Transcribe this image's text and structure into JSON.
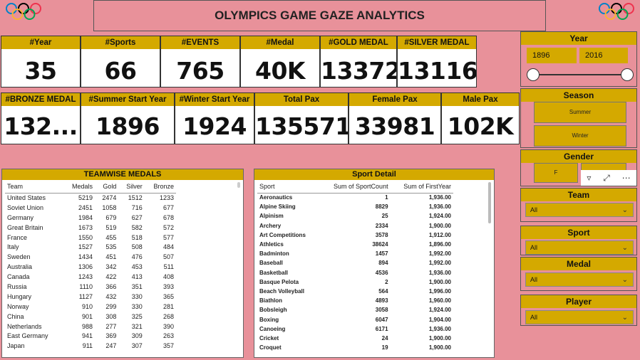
{
  "header": {
    "title": "OLYMPICS GAME GAZE ANALYTICS",
    "logo_left": "olympic-rings-icon",
    "logo_right": "olympic-rings-icon"
  },
  "kpis_row1": [
    {
      "label": "#Year",
      "value": "35"
    },
    {
      "label": "#Sports",
      "value": "66"
    },
    {
      "label": "#EVENTS",
      "value": "765"
    },
    {
      "label": "#Medal",
      "value": "40K"
    },
    {
      "label": "#GOLD MEDAL",
      "value": "13372"
    },
    {
      "label": "#SILVER MEDAL",
      "value": "13116"
    }
  ],
  "kpis_row2": [
    {
      "label": "#BRONZE MEDAL",
      "value": "132..."
    },
    {
      "label": "#Summer Start Year",
      "value": "1896"
    },
    {
      "label": "#Winter Start Year",
      "value": "1924"
    },
    {
      "label": "Total Pax",
      "value": "135571"
    },
    {
      "label": "Female Pax",
      "value": "33981"
    },
    {
      "label": "Male Pax",
      "value": "102K"
    }
  ],
  "filters": {
    "year": {
      "title": "Year",
      "from": "1896",
      "to": "2016"
    },
    "season": {
      "title": "Season",
      "options": [
        "Summer",
        "Winter"
      ]
    },
    "gender": {
      "title": "Gender",
      "option": "F"
    },
    "team": {
      "title": "Team",
      "value": "All"
    },
    "sport": {
      "title": "Sport",
      "value": "All"
    },
    "medal": {
      "title": "Medal",
      "value": "All"
    },
    "player": {
      "title": "Player",
      "value": "All"
    }
  },
  "teamwise": {
    "title": "TEAMWISE MEDALS",
    "columns": [
      "Team",
      "Medals",
      "Gold",
      "Silver",
      "Bronze"
    ],
    "rows": [
      [
        "United States",
        "5219",
        "2474",
        "1512",
        "1233"
      ],
      [
        "Soviet Union",
        "2451",
        "1058",
        "716",
        "677"
      ],
      [
        "Germany",
        "1984",
        "679",
        "627",
        "678"
      ],
      [
        "Great Britain",
        "1673",
        "519",
        "582",
        "572"
      ],
      [
        "France",
        "1550",
        "455",
        "518",
        "577"
      ],
      [
        "Italy",
        "1527",
        "535",
        "508",
        "484"
      ],
      [
        "Sweden",
        "1434",
        "451",
        "476",
        "507"
      ],
      [
        "Australia",
        "1306",
        "342",
        "453",
        "511"
      ],
      [
        "Canada",
        "1243",
        "422",
        "413",
        "408"
      ],
      [
        "Russia",
        "1110",
        "366",
        "351",
        "393"
      ],
      [
        "Hungary",
        "1127",
        "432",
        "330",
        "365"
      ],
      [
        "Norway",
        "910",
        "299",
        "330",
        "281"
      ],
      [
        "China",
        "901",
        "308",
        "325",
        "268"
      ],
      [
        "Netherlands",
        "988",
        "277",
        "321",
        "390"
      ],
      [
        "East Germany",
        "941",
        "369",
        "309",
        "263"
      ],
      [
        "Japan",
        "911",
        "247",
        "307",
        "357"
      ]
    ]
  },
  "sport_detail": {
    "title": "Sport Detail",
    "columns": [
      "Sport",
      "Sum of SportCount",
      "Sum of FirstYear"
    ],
    "rows": [
      [
        "Aeronautics",
        "1",
        "1,936.00"
      ],
      [
        "Alpine Skiing",
        "8829",
        "1,936.00"
      ],
      [
        "Alpinism",
        "25",
        "1,924.00"
      ],
      [
        "Archery",
        "2334",
        "1,900.00"
      ],
      [
        "Art Competitions",
        "3578",
        "1,912.00"
      ],
      [
        "Athletics",
        "38624",
        "1,896.00"
      ],
      [
        "Badminton",
        "1457",
        "1,992.00"
      ],
      [
        "Baseball",
        "894",
        "1,992.00"
      ],
      [
        "Basketball",
        "4536",
        "1,936.00"
      ],
      [
        "Basque Pelota",
        "2",
        "1,900.00"
      ],
      [
        "Beach Volleyball",
        "564",
        "1,996.00"
      ],
      [
        "Biathlon",
        "4893",
        "1,960.00"
      ],
      [
        "Bobsleigh",
        "3058",
        "1,924.00"
      ],
      [
        "Boxing",
        "6047",
        "1,904.00"
      ],
      [
        "Canoeing",
        "6171",
        "1,936.00"
      ],
      [
        "Cricket",
        "24",
        "1,900.00"
      ],
      [
        "Croquet",
        "19",
        "1,900.00"
      ]
    ]
  }
}
